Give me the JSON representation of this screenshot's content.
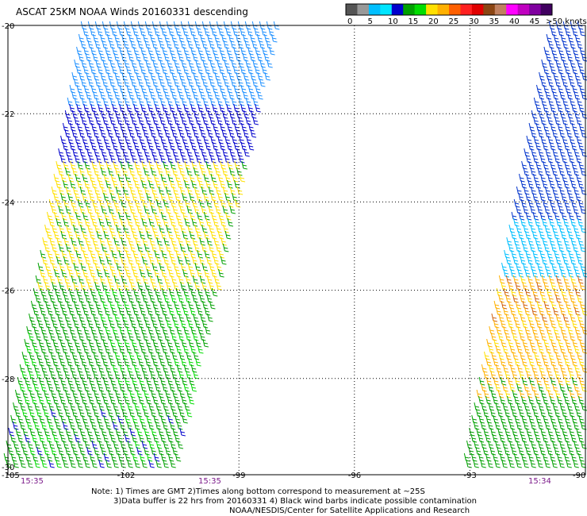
{
  "title": "ASCAT 25KM NOAA Winds 20160331 descending",
  "legend": {
    "colors": [
      "#555555",
      "#999999",
      "#00bfff",
      "#00e5ff",
      "#0000cc",
      "#00a000",
      "#00dd00",
      "#ffe000",
      "#ffb000",
      "#ff6000",
      "#ff2020",
      "#e00000",
      "#8b4513",
      "#c08060",
      "#ff00ff",
      "#c000c0",
      "#8000a0",
      "#400060"
    ],
    "labels": [
      "0",
      "5",
      "10",
      "15",
      "20",
      "25",
      "30",
      "35",
      "40",
      "45",
      ">50 knots"
    ]
  },
  "axes": {
    "lat_labels": [
      "-20",
      "-22",
      "-24",
      "-26",
      "-28",
      "-30"
    ],
    "lon_labels": [
      "-105",
      "-102",
      "-99",
      "-96",
      "-93",
      "-90"
    ]
  },
  "times": [
    "15:35",
    "15:35",
    "15:34"
  ],
  "notes": {
    "line1": "Note: 1) Times are GMT 2)Times along bottom correspond to measurement at ~25S",
    "line2": "3)Data buffer is 22 hrs from 20160331 4) Black wind barbs indicate possible contamination",
    "line3": "NOAA/NESDIS/Center for Satellite Applications and Research"
  },
  "swaths": [
    {
      "name": "western-swath",
      "regions": [
        {
          "lat_range": [
            -20,
            -21.8
          ],
          "speed_kt": 12,
          "color": "#1e90ff"
        },
        {
          "lat_range": [
            -21.8,
            -23.2
          ],
          "speed_kt": 17,
          "color": "#0000cc"
        },
        {
          "lat_range": [
            -23.2,
            -26
          ],
          "speed_kt": 22,
          "color": "#ffe000"
        },
        {
          "lat_range": [
            -26,
            -30
          ],
          "speed_kt": 19,
          "color": "#00a000"
        }
      ]
    },
    {
      "name": "eastern-swath",
      "regions": [
        {
          "lat_range": [
            -20,
            -24.5
          ],
          "speed_kt": 14,
          "color": "#0033cc"
        },
        {
          "lat_range": [
            -24.5,
            -25.8
          ],
          "speed_kt": 11,
          "color": "#00bfff"
        },
        {
          "lat_range": [
            -25.8,
            -28.5
          ],
          "speed_kt": 24,
          "color": "#ffb000"
        },
        {
          "lat_range": [
            -28.5,
            -30
          ],
          "speed_kt": 19,
          "color": "#00a000"
        }
      ]
    }
  ]
}
